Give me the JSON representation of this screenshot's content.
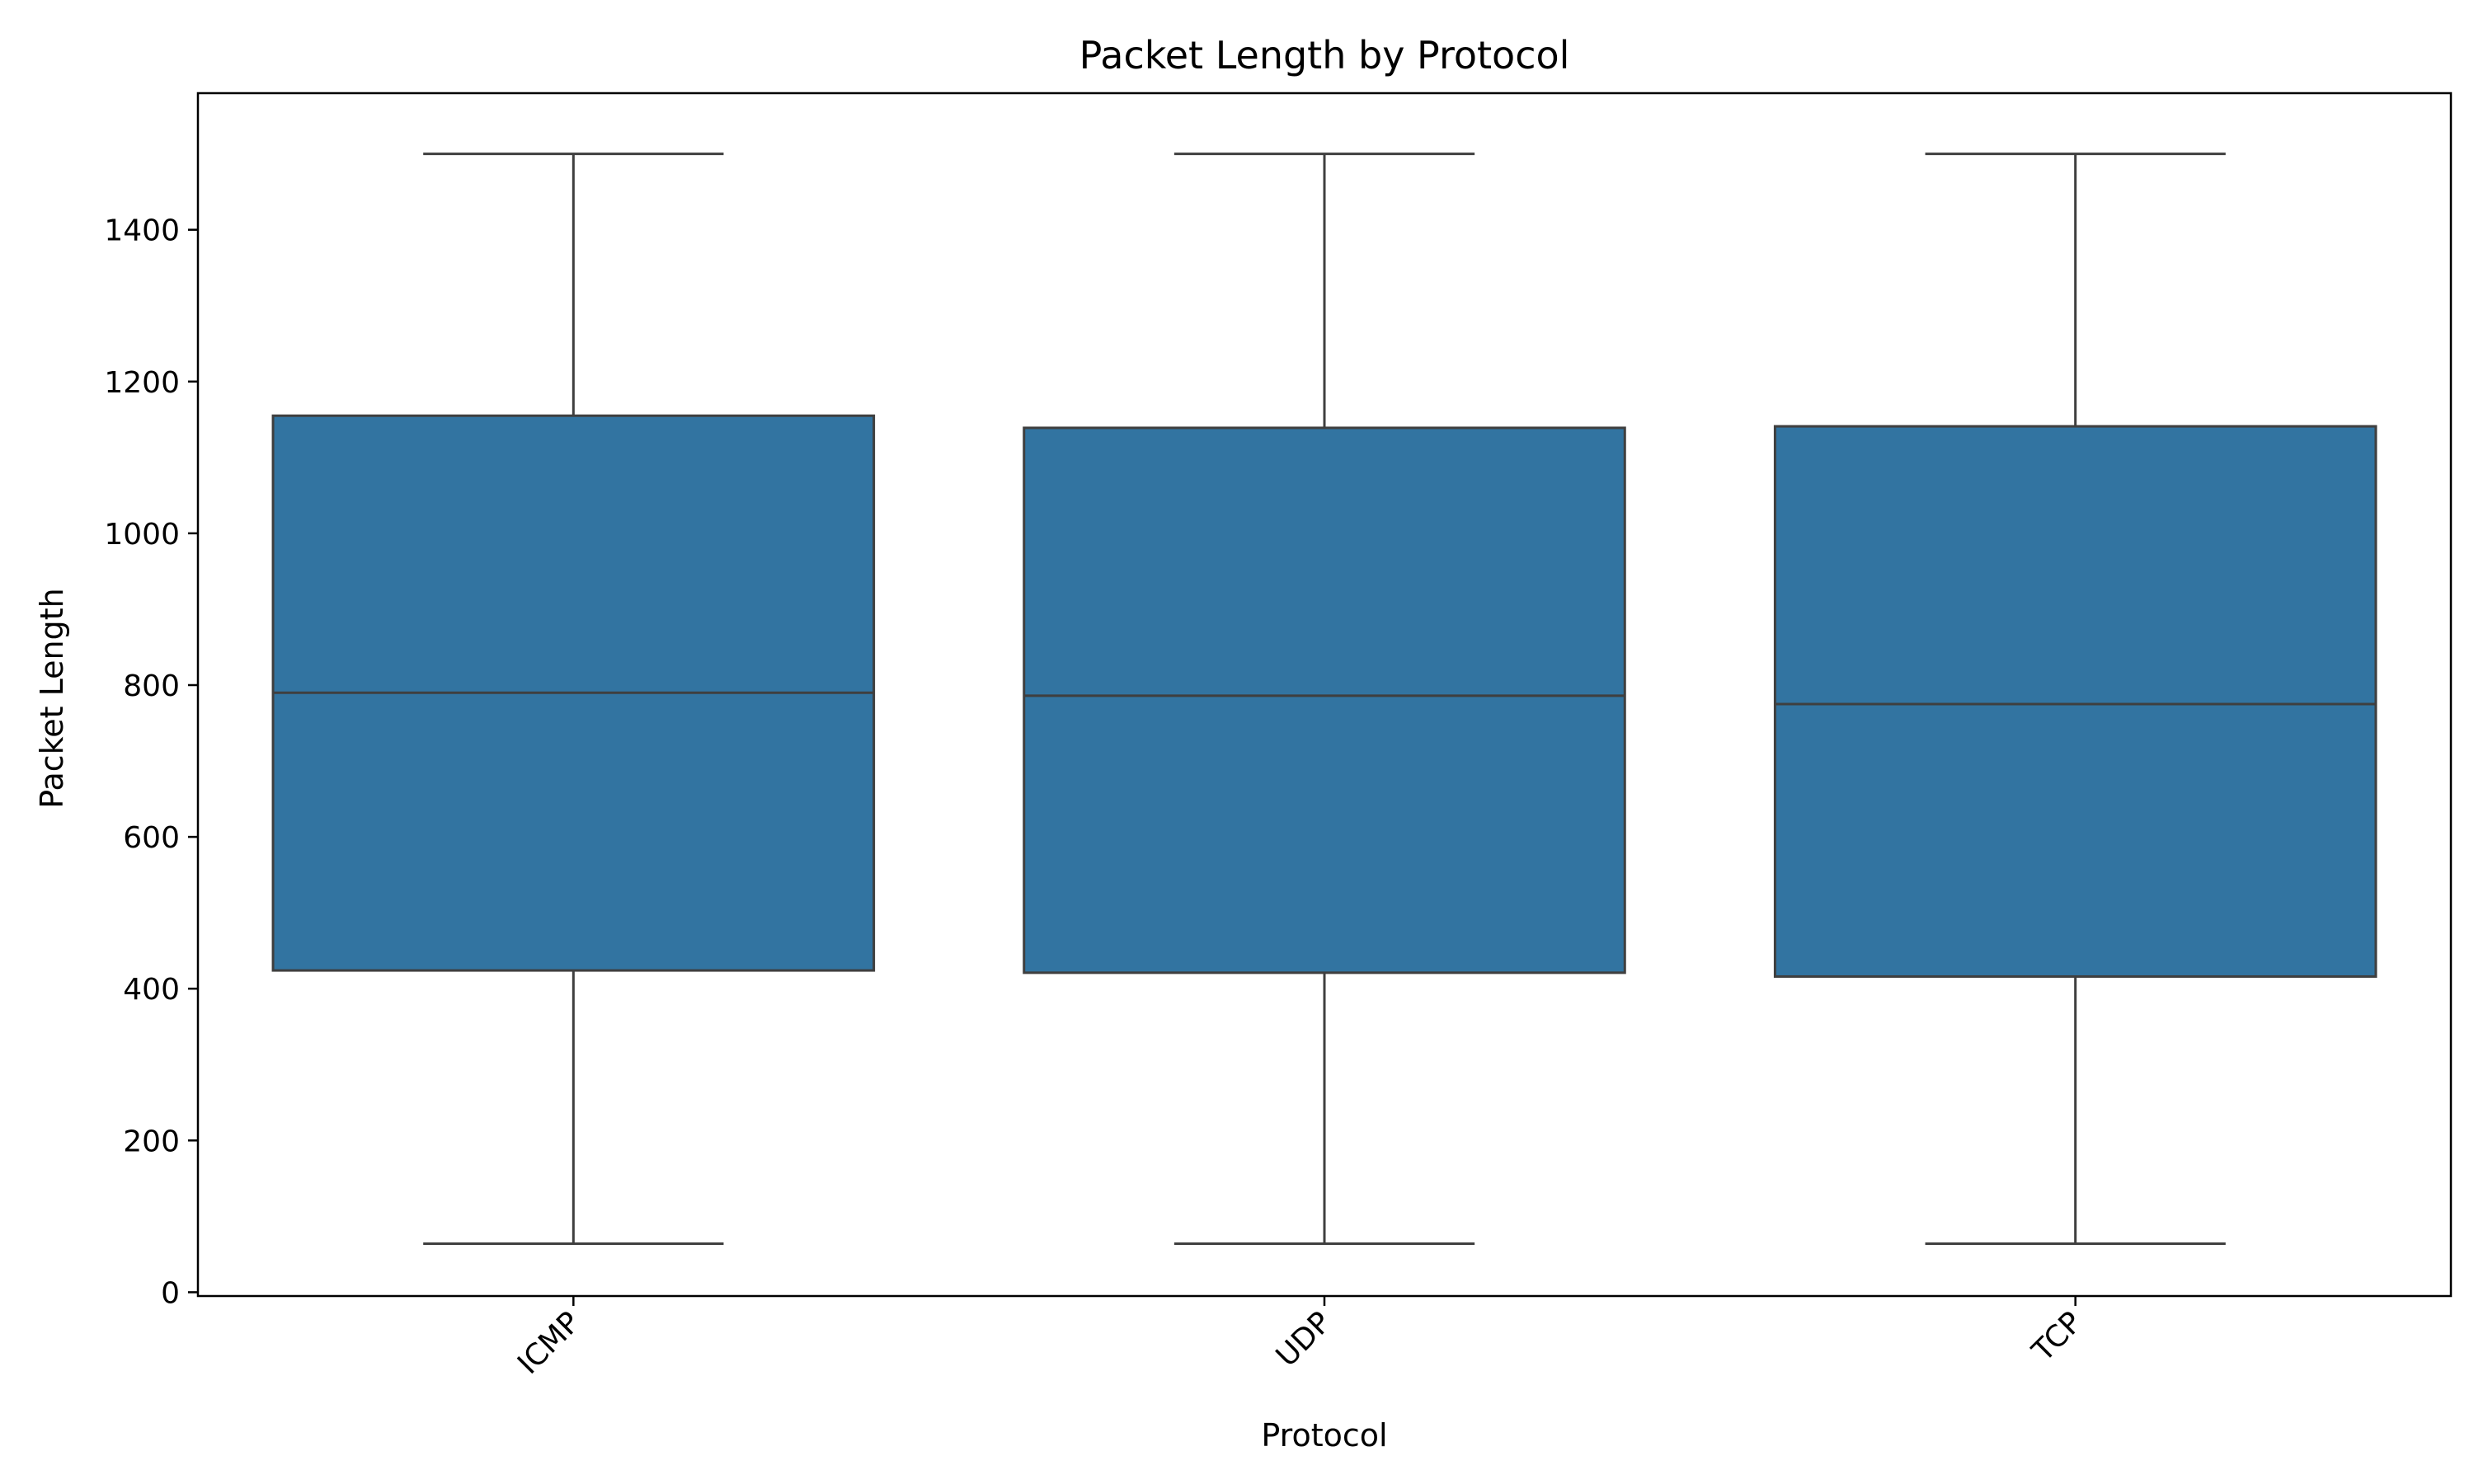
{
  "chart_data": {
    "type": "box",
    "title": "Packet Length by Protocol",
    "xlabel": "Protocol",
    "ylabel": "Packet Length",
    "ylim": [
      -5,
      1580
    ],
    "yticks": [
      0,
      200,
      400,
      600,
      800,
      1000,
      1200,
      1400
    ],
    "categories": [
      "ICMP",
      "UDP",
      "TCP"
    ],
    "boxes": [
      {
        "category": "ICMP",
        "whisker_low": 64,
        "q1": 424,
        "median": 790,
        "q3": 1155,
        "whisker_high": 1500
      },
      {
        "category": "UDP",
        "whisker_low": 64,
        "q1": 421,
        "median": 786,
        "q3": 1139,
        "whisker_high": 1500
      },
      {
        "category": "TCP",
        "whisker_low": 64,
        "q1": 416,
        "median": 775,
        "q3": 1141,
        "whisker_high": 1500
      }
    ],
    "box_color": "#3274a1",
    "line_color": "#3f3f3f",
    "grid": false,
    "xtick_rotation_deg": 45
  }
}
